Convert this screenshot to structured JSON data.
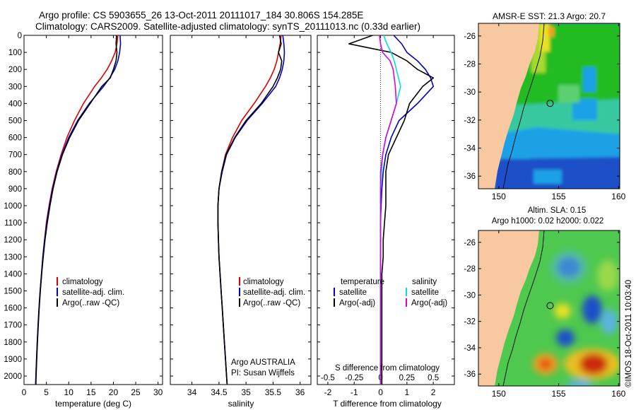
{
  "header": {
    "line1": "Argo profile: CS 5903655_26 13-Oct-2011 20111017_184 30.806S 154.285E",
    "line2": "Climatology: CARS2009. Satellite-adjusted climatology: synTS_20111013.nc (0.33d earlier)"
  },
  "side_label": "©IMOS 18-Oct-2011 10:03:40",
  "colors": {
    "climatology": "#dd0000",
    "satellite": "#0000cc",
    "argo": "#000000",
    "salinity_satellite": "#00e0e0",
    "salinity_argo": "#dd00dd",
    "land": "#f8c8a0",
    "map_green": "#22bb22",
    "map_cyan": "#1ea0e6",
    "map_blue": "#1e50c8",
    "map_yellow": "#e8e020",
    "map_red": "#cc2a10"
  },
  "panels": {
    "temperature": {
      "xlabel": "temperature (deg C)",
      "legend": [
        "climatology",
        "satellite-adj. clim.",
        "Argo(..raw -QC)"
      ]
    },
    "salinity": {
      "xlabel": "salinity",
      "legend": [
        "climatology",
        "satellite-adj. clim.",
        "Argo(..raw -QC)"
      ],
      "note1": "Argo AUSTRALIA",
      "note2": "PI: Susan Wijffels"
    },
    "difference": {
      "xlabel": "T difference from climatology",
      "top_xlabel": "S difference from climatology",
      "legend_temp_title": "temperature",
      "legend_sal_title": "salinity",
      "legend_temp": [
        "satellite",
        "Argo(-adj)"
      ],
      "legend_sal": [
        "satellite",
        "Argo(-adj)"
      ]
    },
    "sst_map": {
      "title": "AMSR-E SST: 21.3 Argo: 20.7",
      "sst": 21.3,
      "argo": 20.7
    },
    "sla_map": {
      "title1": "Altim. SLA: 0.15",
      "title2": "Argo h1000: 0.02 h2000: 0.022",
      "sla": 0.15,
      "h1000": 0.02,
      "h2000": 0.022
    }
  },
  "chart_data": [
    {
      "type": "line",
      "name": "temperature-profile",
      "xlabel": "temperature (deg C)",
      "ylabel": "",
      "xlim": [
        0,
        31
      ],
      "ylim": [
        2050,
        0
      ],
      "xticks": [
        0,
        5,
        10,
        15,
        20,
        25,
        30
      ],
      "yticks": [
        0,
        100,
        200,
        300,
        400,
        500,
        600,
        700,
        800,
        900,
        1000,
        1100,
        1200,
        1300,
        1400,
        1500,
        1600,
        1700,
        1800,
        1900,
        2000
      ],
      "y": [
        0,
        50,
        100,
        150,
        200,
        250,
        300,
        400,
        500,
        600,
        700,
        800,
        900,
        1000,
        1100,
        1200,
        1300,
        1400,
        1500,
        1600,
        1700,
        1800,
        1900,
        2000,
        2050
      ],
      "series": [
        {
          "name": "climatology",
          "values": [
            21.0,
            20.8,
            20.4,
            19.6,
            18.6,
            17.3,
            15.8,
            13.3,
            11.3,
            9.6,
            8.3,
            7.2,
            6.3,
            5.6,
            5.0,
            4.6,
            4.2,
            3.9,
            3.6,
            3.35,
            3.15,
            2.95,
            2.8,
            2.65,
            2.6
          ]
        },
        {
          "name": "satellite-adj. clim.",
          "values": [
            21.5,
            21.6,
            21.4,
            21.0,
            20.3,
            19.2,
            17.8,
            14.6,
            12.0,
            10.0,
            8.5,
            7.3,
            6.4,
            5.7,
            5.1,
            4.6,
            4.2,
            3.9,
            3.6,
            3.35,
            3.15,
            2.95,
            2.8,
            2.65,
            2.6
          ]
        },
        {
          "name": "Argo(..raw -QC)",
          "values": [
            20.7,
            20.6,
            20.8,
            20.6,
            20.0,
            19.3,
            17.4,
            14.8,
            12.2,
            10.2,
            8.6,
            7.4,
            6.5,
            5.8,
            5.2,
            4.7,
            4.3,
            3.95,
            3.65,
            3.4,
            3.2,
            3.0,
            2.85,
            2.7,
            2.65
          ]
        }
      ]
    },
    {
      "type": "line",
      "name": "salinity-profile",
      "xlabel": "salinity",
      "ylabel": "",
      "xlim": [
        33.6,
        36.2
      ],
      "ylim": [
        2050,
        0
      ],
      "xticks": [
        34,
        34.5,
        35,
        35.5,
        36
      ],
      "y": [
        0,
        50,
        100,
        150,
        200,
        250,
        300,
        400,
        500,
        600,
        700,
        800,
        900,
        1000,
        1100,
        1200,
        1300,
        1400,
        1500,
        1600,
        1700,
        1800,
        1900,
        2000,
        2050
      ],
      "series": [
        {
          "name": "climatology",
          "values": [
            35.65,
            35.63,
            35.6,
            35.57,
            35.52,
            35.45,
            35.36,
            35.15,
            34.92,
            34.75,
            34.62,
            34.55,
            34.5,
            34.48,
            34.48,
            34.49,
            34.5,
            34.52,
            34.54,
            34.56,
            34.58,
            34.6,
            34.62,
            34.64,
            34.65
          ]
        },
        {
          "name": "satellite-adj. clim.",
          "values": [
            35.68,
            35.7,
            35.71,
            35.7,
            35.67,
            35.62,
            35.55,
            35.3,
            35.02,
            34.8,
            34.64,
            34.56,
            34.5,
            34.48,
            34.48,
            34.49,
            34.5,
            34.52,
            34.54,
            34.56,
            34.58,
            34.6,
            34.62,
            34.64,
            34.65
          ]
        },
        {
          "name": "Argo(..raw -QC)",
          "values": [
            35.62,
            35.65,
            35.6,
            35.66,
            35.64,
            35.58,
            35.5,
            35.28,
            35.0,
            34.79,
            34.63,
            34.55,
            34.5,
            34.48,
            34.48,
            34.49,
            34.5,
            34.52,
            34.54,
            34.56,
            34.58,
            34.6,
            34.62,
            34.64,
            34.65
          ]
        }
      ]
    },
    {
      "type": "line",
      "name": "difference-profile",
      "xlabel": "T difference from climatology",
      "ylabel": "",
      "xlim": [
        -2.4,
        2.8
      ],
      "ylim": [
        2050,
        0
      ],
      "xticks": [
        -2,
        -1,
        0,
        1,
        2
      ],
      "top_xlabel": "S difference from climatology",
      "top_xticks": [
        -0.5,
        -0.25,
        0,
        0.25,
        0.5
      ],
      "y": [
        0,
        50,
        100,
        150,
        200,
        250,
        300,
        400,
        500,
        600,
        700,
        800,
        900,
        1000,
        1100,
        1200,
        1300,
        1400,
        1500,
        1600,
        1700,
        1800,
        1900,
        2000,
        2050
      ],
      "series": [
        {
          "name": "temperature satellite",
          "values": [
            0.5,
            0.8,
            1.0,
            1.4,
            1.7,
            1.9,
            2.0,
            1.4,
            0.7,
            0.4,
            0.2,
            0.1,
            0.05,
            0.02,
            0.0,
            0.0,
            0.0,
            0.0,
            0.0,
            0.0,
            0.0,
            0.0,
            0.0,
            0.0,
            0.0
          ]
        },
        {
          "name": "temperature Argo(-adj)",
          "values": [
            -0.3,
            -1.2,
            0.4,
            1.0,
            1.4,
            2.0,
            1.6,
            1.1,
            0.9,
            0.6,
            0.3,
            0.2,
            0.2,
            0.2,
            0.15,
            0.1,
            0.1,
            0.05,
            0.05,
            0.05,
            0.05,
            0.05,
            0.05,
            0.05,
            0.05
          ]
        },
        {
          "name": "salinity satellite",
          "values": [
            0.03,
            0.06,
            0.1,
            0.13,
            0.15,
            0.17,
            0.19,
            0.15,
            0.1,
            0.05,
            0.02,
            0.01,
            0.0,
            0.0,
            0.0,
            0.0,
            0.0,
            0.0,
            0.0,
            0.0,
            0.0,
            0.0,
            0.0,
            0.0,
            0.0
          ]
        },
        {
          "name": "salinity Argo(-adj)",
          "values": [
            -0.01,
            0.0,
            0.02,
            0.09,
            0.12,
            0.13,
            0.14,
            0.15,
            0.1,
            0.05,
            0.02,
            0.0,
            0.0,
            0.0,
            0.0,
            0.0,
            0.0,
            0.0,
            0.0,
            0.0,
            0.0,
            0.0,
            0.0,
            0.0,
            0.0
          ]
        }
      ]
    },
    {
      "type": "heatmap",
      "name": "sst-map",
      "title": "AMSR-E SST: 21.3 Argo: 20.7",
      "xlim": [
        148.3,
        160.1
      ],
      "ylim": [
        -36.9,
        -25.1
      ],
      "xticks": [
        150,
        155,
        160
      ],
      "yticks": [
        -26,
        -28,
        -30,
        -32,
        -34,
        -36
      ],
      "argo_position": [
        154.285,
        -30.806
      ]
    },
    {
      "type": "heatmap",
      "name": "sla-map",
      "title": "Altim. SLA: 0.15 / Argo h1000: 0.02 h2000: 0.022",
      "xlim": [
        148.3,
        160.1
      ],
      "ylim": [
        -36.9,
        -25.1
      ],
      "xticks": [
        150,
        155,
        160
      ],
      "yticks": [
        -26,
        -28,
        -30,
        -32,
        -34,
        -36
      ],
      "argo_position": [
        154.285,
        -30.806
      ]
    }
  ]
}
